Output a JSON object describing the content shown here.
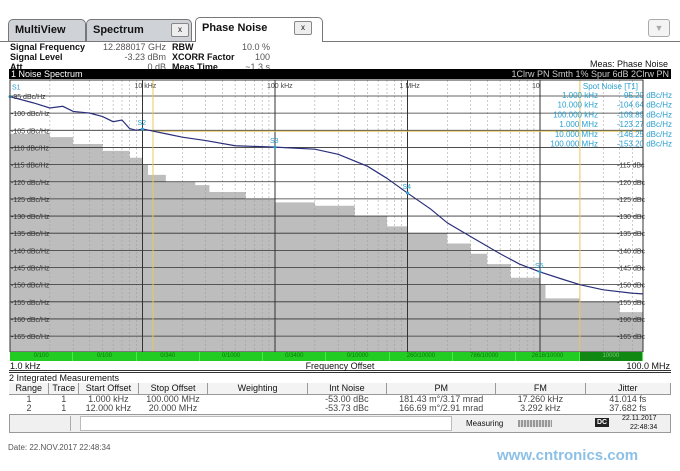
{
  "tabs": [
    {
      "label": "MultiView"
    },
    {
      "label": "Spectrum",
      "close": "x"
    },
    {
      "label": "Phase Noise",
      "close": "x"
    }
  ],
  "menu_icon": "chevron-down-icon",
  "info": {
    "left": [
      [
        "Signal Frequency",
        "12.288017 GHz"
      ],
      [
        "Signal Level",
        "-3.23 dBm"
      ],
      [
        "Att",
        "0 dB"
      ]
    ],
    "mid": [
      [
        "RBW",
        "10.0 %"
      ],
      [
        "XCORR Factor",
        "100"
      ],
      [
        "Meas Time",
        "~1.3 s"
      ]
    ],
    "meas": "Meas: Phase Noise"
  },
  "window": {
    "title": "1 Noise Spectrum",
    "trace_info": "1Clrw PN Smth 1% Spur 6dB  2Clrw PN"
  },
  "colors": {
    "trace": "#2a2f7a",
    "gray": "#bdbdbd",
    "marker": "#2a9fcf",
    "yellow": "#e8c860",
    "green": "#22cc22"
  },
  "chart_data": {
    "type": "line",
    "xscale": "log",
    "xlim": [
      1000,
      100000000
    ],
    "ylim": [
      -168,
      -92
    ],
    "xlabel": "Frequency Offset",
    "x_start": "1.0 kHz",
    "x_stop": "100.0 MHz",
    "x_ticks": [
      {
        "v": 10000,
        "l": "10 kHz"
      },
      {
        "v": 100000,
        "l": "100 kHz"
      },
      {
        "v": 1000000,
        "l": "1 MHz"
      },
      {
        "v": 10000000,
        "l": "10"
      }
    ],
    "y_ticks": [
      -95,
      -100,
      -105,
      -110,
      -115,
      -120,
      -125,
      -130,
      -135,
      -140,
      -145,
      -150,
      -155,
      -160,
      -165
    ],
    "y_unit": "dBc/Hz",
    "trace": [
      [
        1000,
        -95.2
      ],
      [
        1500,
        -97
      ],
      [
        2000,
        -98.5
      ],
      [
        2500,
        -98
      ],
      [
        3000,
        -99.5
      ],
      [
        4000,
        -100
      ],
      [
        5000,
        -101
      ],
      [
        6000,
        -102.5
      ],
      [
        7000,
        -102
      ],
      [
        8000,
        -104.5
      ],
      [
        9000,
        -105
      ],
      [
        10000,
        -104.6
      ],
      [
        15000,
        -106
      ],
      [
        20000,
        -107
      ],
      [
        30000,
        -108
      ],
      [
        50000,
        -109.5
      ],
      [
        100000,
        -109.9
      ],
      [
        200000,
        -110.5
      ],
      [
        300000,
        -112
      ],
      [
        500000,
        -115.5
      ],
      [
        700000,
        -119
      ],
      [
        1000000,
        -123.3
      ],
      [
        1500000,
        -128
      ],
      [
        2000000,
        -132
      ],
      [
        3000000,
        -136
      ],
      [
        5000000,
        -141
      ],
      [
        7000000,
        -144
      ],
      [
        10000000,
        -146.3
      ],
      [
        15000000,
        -148.5
      ],
      [
        20000000,
        -150
      ],
      [
        30000000,
        -151.5
      ],
      [
        50000000,
        -152.5
      ],
      [
        100000000,
        -153.2
      ]
    ],
    "limit_area": [
      [
        1000,
        -106
      ],
      [
        2000,
        -107
      ],
      [
        3000,
        -109
      ],
      [
        5000,
        -111
      ],
      [
        8000,
        -113
      ],
      [
        10000,
        -115
      ],
      [
        11000,
        -118
      ],
      [
        15000,
        -120
      ],
      [
        25000,
        -121
      ],
      [
        32000,
        -123
      ],
      [
        60000,
        -125
      ],
      [
        100000,
        -126
      ],
      [
        200000,
        -127
      ],
      [
        400000,
        -130
      ],
      [
        700000,
        -133
      ],
      [
        1000000,
        -135
      ],
      [
        2000000,
        -138
      ],
      [
        3000000,
        -141
      ],
      [
        4000000,
        -144
      ],
      [
        6000000,
        -148
      ],
      [
        10000000,
        -150
      ],
      [
        11000000,
        -154
      ],
      [
        20000000,
        -155
      ],
      [
        40000000,
        -158
      ],
      [
        100000000,
        -160
      ]
    ],
    "markers": [
      {
        "l": "S1",
        "f": 1000,
        "v": -95.2
      },
      {
        "l": "S2",
        "f": 10000,
        "v": -104.64
      },
      {
        "l": "S3",
        "f": 100000,
        "v": -109.89
      },
      {
        "l": "S4",
        "f": 1000000,
        "v": -123.27
      },
      {
        "l": "S5",
        "f": 10000000,
        "v": -146.25
      }
    ],
    "integration_lines": [
      12000,
      20000000
    ],
    "spot_noise": {
      "title": "Spot Noise [T1]",
      "rows": [
        [
          "1.000 kHz",
          "-95.20 dBc/Hz"
        ],
        [
          "10.000 kHz",
          "-104.64 dBc/Hz"
        ],
        [
          "100.000 kHz",
          "-109.89 dBc/Hz"
        ],
        [
          "1.000 MHz",
          "-123.27 dBc/Hz"
        ],
        [
          "10.000 MHz",
          "-146.25 dBc/Hz"
        ],
        [
          "100.000 MHz",
          "-153.20 dBc/Hz"
        ]
      ]
    }
  },
  "green_bar": [
    "0/100",
    "0/100",
    "0/340",
    "0/1000",
    "0/3400",
    "0/10000",
    "260/10000",
    "786/10000",
    "2618/10000",
    "10000"
  ],
  "integrated": {
    "title": "2 Integrated Measurements",
    "headers": [
      "Range",
      "Trace",
      "Start Offset",
      "Stop Offset",
      "Weighting",
      "Int Noise",
      "PM",
      "FM",
      "Jitter"
    ],
    "rows": [
      [
        "1",
        "1",
        "1.000 kHz",
        "100.000 MHz",
        "",
        "-53.00 dBc",
        "181.43 m°/3.17 mrad",
        "17.260 kHz",
        "41.014 fs"
      ],
      [
        "2",
        "1",
        "12.000 kHz",
        "20.000 MHz",
        "",
        "-53.73 dBc",
        "166.69 m°/2.91 mrad",
        "3.292 kHz",
        "37.682 fs"
      ]
    ]
  },
  "status": {
    "measuring": "Measuring",
    "dc": "DC",
    "date": "22.11.2017",
    "time": "22:48:34"
  },
  "footer_date": "Date: 22.NOV.2017  22:48:34",
  "watermark": "www.cntronics.com"
}
